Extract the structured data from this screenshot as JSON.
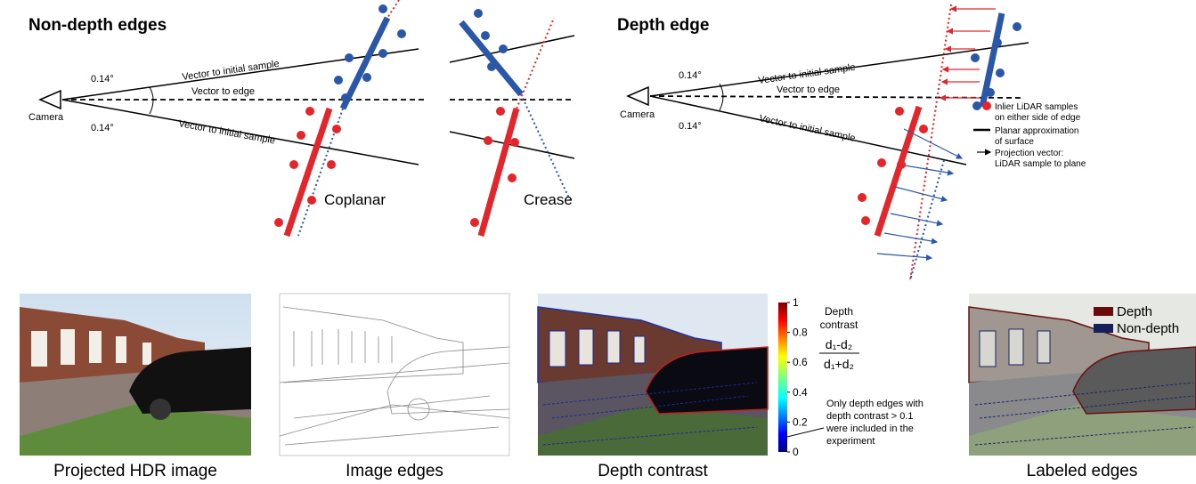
{
  "non_depth": {
    "title": "Non-depth edges",
    "angle_top": "0.14°",
    "angle_bottom": "0.14°",
    "camera": "Camera",
    "vector_initial_top": "Vector to initial sample",
    "vector_edge": "Vector to edge",
    "vector_initial_bottom": "Vector to initial sample",
    "coplanar": "Coplanar",
    "crease": "Crease"
  },
  "depth": {
    "title": "Depth edge",
    "angle_top": "0.14°",
    "angle_bottom": "0.14°",
    "camera": "Camera",
    "vector_initial_top": "Vector to initial sample",
    "vector_edge": "Vector to edge",
    "vector_initial_bottom": "Vector to initial sample"
  },
  "legend": {
    "inlier": [
      "Inlier LiDAR samples",
      "on either side of edge"
    ],
    "plane": [
      "Planar approximation",
      "of surface"
    ],
    "projection": [
      "Projection vector:",
      "LiDAR sample to plane"
    ]
  },
  "panels": [
    {
      "caption": "Projected HDR image"
    },
    {
      "caption": "Image edges"
    },
    {
      "caption": "Depth contrast"
    },
    {
      "caption": "Labeled edges"
    }
  ],
  "colorbar": {
    "lim": [
      0,
      1
    ],
    "ticks": [
      0,
      0.2,
      0.4,
      0.6,
      0.8,
      1
    ],
    "title": [
      "Depth",
      "contrast"
    ],
    "numerator": "d₁-d₂",
    "denominator": "d₁+d₂",
    "note": [
      "Only depth edges with",
      "depth contrast > 0.1",
      "were included in the",
      "experiment"
    ]
  },
  "labeled_legend": [
    "Depth",
    "Non-depth"
  ]
}
